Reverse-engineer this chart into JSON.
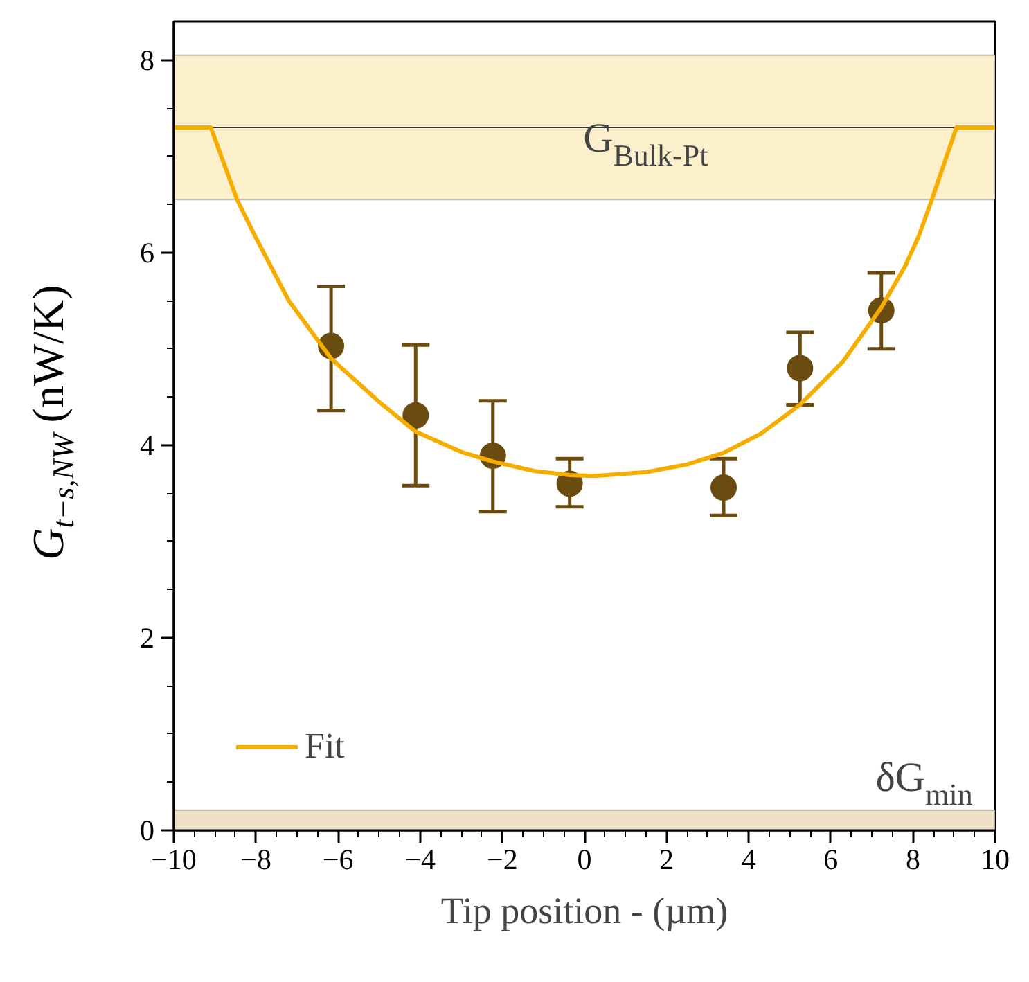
{
  "chart_data": {
    "type": "scatter",
    "xlabel": "Tip position - (µm)",
    "ylabel": "G$_{t−s,NW}$ (nW/K)",
    "xlim": [
      -10,
      10
    ],
    "ylim": [
      0,
      8.4
    ],
    "xticks": [
      -10,
      -8,
      -6,
      -4,
      -2,
      0,
      2,
      4,
      6,
      8,
      10
    ],
    "yticks": [
      0,
      2,
      4,
      6,
      8
    ],
    "grid": false,
    "legend": "bottom left",
    "series": [
      {
        "color": "#6b4c10",
        "marker": "circle",
        "x": [
          -6.17,
          -4.11,
          -2.23,
          -0.36,
          3.39,
          5.25,
          7.23
        ],
        "values": [
          5.03,
          4.31,
          3.89,
          3.6,
          3.56,
          4.8,
          5.4
        ],
        "errors": [
          [
            4.36,
            5.65
          ],
          [
            3.58,
            5.04
          ],
          [
            3.31,
            4.46
          ],
          [
            3.36,
            3.86
          ],
          [
            3.27,
            3.86
          ],
          [
            4.42,
            5.17
          ],
          [
            5.0,
            5.79
          ]
        ]
      },
      {
        "type": "line",
        "name": "Fit",
        "color": "#f5ae00",
        "line_style": "solid",
        "marker": "none",
        "x": [
          -10,
          -9.1,
          -8.46,
          -8.02,
          -7.2,
          -6.17,
          -5.0,
          -4.11,
          -3.0,
          -2.23,
          -1.2,
          -0.36,
          0.26,
          1.5,
          2.5,
          3.39,
          4.3,
          5.25,
          6.3,
          7.23,
          7.8,
          8.14,
          8.46,
          9.06,
          10
        ],
        "values": [
          7.3,
          7.3,
          6.55,
          6.17,
          5.5,
          4.9,
          4.45,
          4.14,
          3.93,
          3.83,
          3.73,
          3.69,
          3.68,
          3.72,
          3.8,
          3.92,
          4.12,
          4.42,
          4.87,
          5.43,
          5.85,
          6.17,
          6.55,
          7.3,
          7.3
        ]
      }
    ],
    "bands": [
      {
        "axis": "y",
        "from": 6.55,
        "to": 8.05,
        "label": "G$_{Bulk-Pt}$",
        "color": "#fcefcc"
      },
      {
        "axis": "y",
        "from": 0,
        "to": 0.21,
        "label": "δG$_{min}$",
        "color": "#efe0c8"
      }
    ],
    "ref_lines": [
      {
        "axis": "y",
        "value": 7.3,
        "color": "#333333"
      }
    ]
  }
}
